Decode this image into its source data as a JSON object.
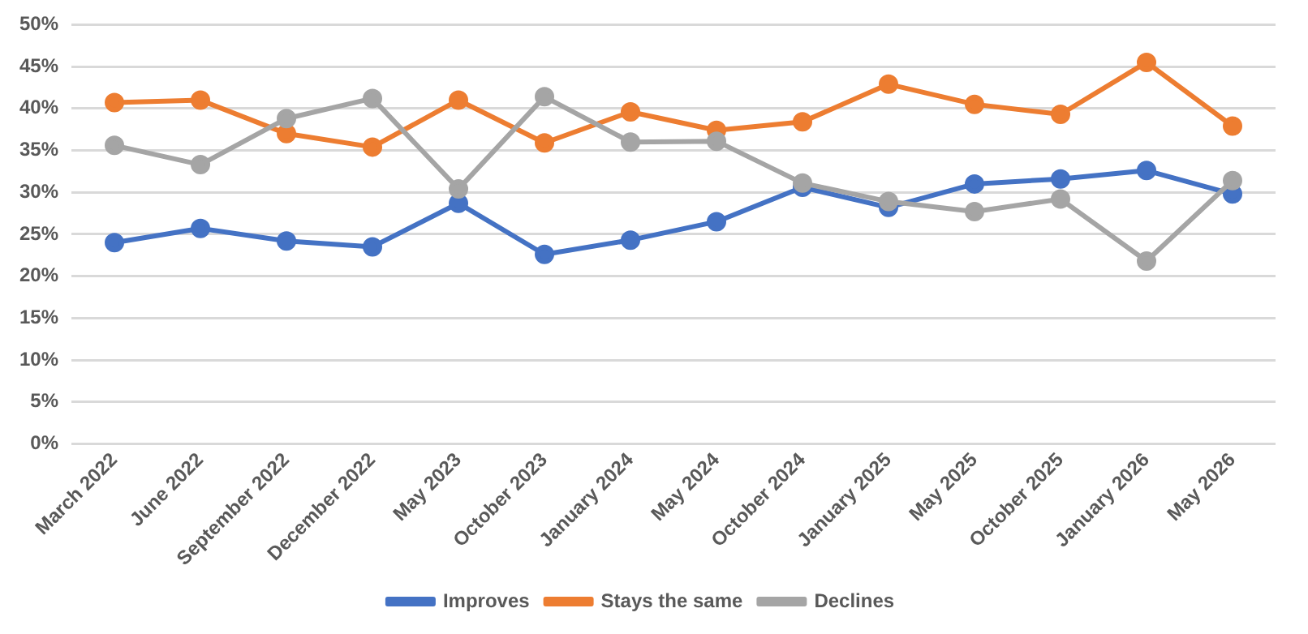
{
  "chart_data": {
    "type": "line",
    "categories": [
      "March 2022",
      "June 2022",
      "September 2022",
      "December 2022",
      "May 2023",
      "October 2023",
      "January 2024",
      "May 2024",
      "October 2024",
      "January 2025",
      "May 2025",
      "October 2025",
      "January 2026",
      "May 2026"
    ],
    "series": [
      {
        "name": "Improves",
        "color": "#4472c4",
        "values": [
          24,
          25.7,
          24.2,
          23.5,
          28.7,
          22.6,
          24.3,
          26.5,
          30.6,
          28.2,
          31.0,
          31.6,
          32.6,
          29.8
        ]
      },
      {
        "name": "Stays the same",
        "color": "#ed7d31",
        "values": [
          40.7,
          41.0,
          37.0,
          35.4,
          41.0,
          35.9,
          39.6,
          37.4,
          38.4,
          42.9,
          40.5,
          39.3,
          45.5,
          37.9
        ]
      },
      {
        "name": "Declines",
        "color": "#a5a5a5",
        "values": [
          35.6,
          33.3,
          38.8,
          41.2,
          30.4,
          41.4,
          36.0,
          36.1,
          31.1,
          28.9,
          27.7,
          29.2,
          21.8,
          31.4
        ]
      }
    ],
    "ylim": [
      0,
      50
    ],
    "yticks": [
      {
        "value": 0,
        "label": "0%"
      },
      {
        "value": 5,
        "label": "5%"
      },
      {
        "value": 10,
        "label": "10%"
      },
      {
        "value": 15,
        "label": "15%"
      },
      {
        "value": 20,
        "label": "20%"
      },
      {
        "value": 25,
        "label": "25%"
      },
      {
        "value": 30,
        "label": "30%"
      },
      {
        "value": 35,
        "label": "35%"
      },
      {
        "value": 40,
        "label": "40%"
      },
      {
        "value": 45,
        "label": "45%"
      },
      {
        "value": 50,
        "label": "50%"
      }
    ],
    "grid": "y",
    "legend": "bottom",
    "marker": "circle",
    "line_style": "solid"
  }
}
